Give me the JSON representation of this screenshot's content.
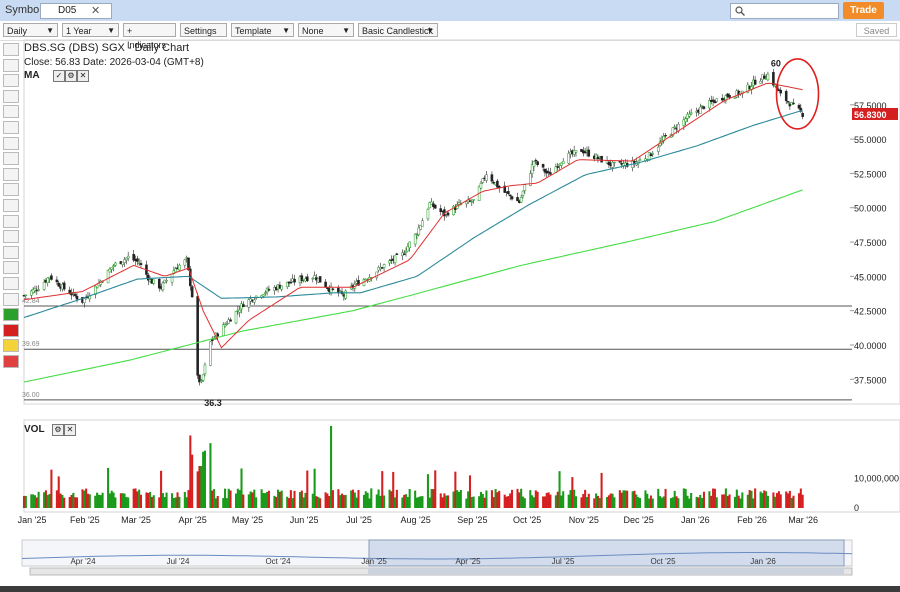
{
  "topbar": {
    "symbols_label": "Symbols:",
    "symbol": "D05",
    "trade_label": "Trade"
  },
  "toolbar": {
    "interval": "Daily",
    "range": "1 Year",
    "indicators": "+ Indicators",
    "settings": "Settings",
    "template": "Template",
    "none": "None",
    "style": "Basic Candlestick",
    "saved": "Saved"
  },
  "chart": {
    "title": "DBS.SG (DBS) SGX - Daily Chart",
    "close_label": "Close: 56.83  Date: 2026-03-04 (GMT+8)",
    "ma_label": "MA",
    "vol_label": "VOL"
  },
  "colors": {
    "up": "#1a9a1a",
    "down": "#d42020",
    "ma_short": "#e03030",
    "ma_mid": "#2b8a9a",
    "ma_long": "#44dd44",
    "price_tag": "#d42020",
    "highlight_circle": "#e02020"
  },
  "chart_data": {
    "type": "candlestick",
    "title": "DBS.SG (DBS) SGX - Daily Chart",
    "last_close": 56.83,
    "last_close_label": "56.8300",
    "price_ticks": [
      "57.5000",
      "55.0000",
      "52.5000",
      "50.0000",
      "47.5000",
      "45.0000",
      "42.5000",
      "40.0000",
      "37.5000"
    ],
    "price_tick_values": [
      57.5,
      55,
      52.5,
      50,
      47.5,
      45,
      42.5,
      40,
      37.5
    ],
    "ylim": [
      35.7,
      61.2
    ],
    "x_ticks": [
      "Jan '25",
      "Feb '25",
      "Mar '25",
      "Apr '25",
      "May '25",
      "Jun '25",
      "Jul '25",
      "Aug '25",
      "Sep '25",
      "Oct '25",
      "Nov '25",
      "Dec '25",
      "Jan '26",
      "Feb '26",
      "Mar '26"
    ],
    "x_range": [
      "2025-01-02",
      "2026-03-31"
    ],
    "horizontal_lines": [
      {
        "label": "42.84",
        "value": 42.84
      },
      {
        "label": "39.69",
        "value": 39.69
      },
      {
        "label": "36.00",
        "value": 36.0
      }
    ],
    "annotations": [
      {
        "text": "60",
        "date": "2026-02-13",
        "value": 60.0
      },
      {
        "text": "36.3",
        "date": "2025-04-09",
        "value": 36.3
      }
    ],
    "price_anchors": [
      [
        "2025-01-02",
        43.6
      ],
      [
        "2025-01-10",
        44.2
      ],
      [
        "2025-01-16",
        45.0
      ],
      [
        "2025-01-24",
        44.1
      ],
      [
        "2025-02-03",
        43.2
      ],
      [
        "2025-02-12",
        44.5
      ],
      [
        "2025-02-20",
        45.8
      ],
      [
        "2025-02-28",
        46.4
      ],
      [
        "2025-03-06",
        46.0
      ],
      [
        "2025-03-12",
        44.7
      ],
      [
        "2025-03-18",
        44.2
      ],
      [
        "2025-03-26",
        45.6
      ],
      [
        "2025-04-01",
        46.2
      ],
      [
        "2025-04-04",
        43.6
      ],
      [
        "2025-04-07",
        37.6
      ],
      [
        "2025-04-09",
        37.2
      ],
      [
        "2025-04-14",
        40.2
      ],
      [
        "2025-04-22",
        41.5
      ],
      [
        "2025-05-02",
        43.0
      ],
      [
        "2025-05-12",
        43.8
      ],
      [
        "2025-05-22",
        44.3
      ],
      [
        "2025-06-02",
        44.8
      ],
      [
        "2025-06-10",
        45.0
      ],
      [
        "2025-06-18",
        44.1
      ],
      [
        "2025-06-26",
        43.6
      ],
      [
        "2025-07-02",
        44.4
      ],
      [
        "2025-07-10",
        45.0
      ],
      [
        "2025-07-18",
        45.8
      ],
      [
        "2025-07-28",
        46.6
      ],
      [
        "2025-08-05",
        48.2
      ],
      [
        "2025-08-12",
        50.3
      ],
      [
        "2025-08-20",
        49.5
      ],
      [
        "2025-08-28",
        50.2
      ],
      [
        "2025-09-05",
        50.5
      ],
      [
        "2025-09-12",
        52.5
      ],
      [
        "2025-09-20",
        51.3
      ],
      [
        "2025-09-30",
        50.4
      ],
      [
        "2025-10-08",
        53.4
      ],
      [
        "2025-10-16",
        52.4
      ],
      [
        "2025-10-24",
        53.6
      ],
      [
        "2025-11-03",
        54.2
      ],
      [
        "2025-11-12",
        53.6
      ],
      [
        "2025-11-20",
        53.1
      ],
      [
        "2025-12-01",
        53.2
      ],
      [
        "2025-12-10",
        53.8
      ],
      [
        "2025-12-20",
        55.3
      ],
      [
        "2025-12-31",
        56.6
      ],
      [
        "2026-01-09",
        57.4
      ],
      [
        "2026-01-20",
        58.1
      ],
      [
        "2026-01-30",
        58.4
      ],
      [
        "2026-02-06",
        59.2
      ],
      [
        "2026-02-13",
        59.7
      ],
      [
        "2026-02-20",
        58.2
      ],
      [
        "2026-02-27",
        57.4
      ],
      [
        "2026-03-04",
        56.83
      ]
    ],
    "ma_short_anchors": [
      [
        "2025-01-02",
        43.3
      ],
      [
        "2025-02-03",
        43.9
      ],
      [
        "2025-03-03",
        45.8
      ],
      [
        "2025-03-20",
        45.0
      ],
      [
        "2025-04-02",
        45.6
      ],
      [
        "2025-04-10",
        42.5
      ],
      [
        "2025-04-20",
        39.8
      ],
      [
        "2025-05-05",
        41.8
      ],
      [
        "2025-06-02",
        44.2
      ],
      [
        "2025-07-01",
        44.2
      ],
      [
        "2025-08-01",
        46.2
      ],
      [
        "2025-08-20",
        49.6
      ],
      [
        "2025-09-10",
        51.2
      ],
      [
        "2025-09-25",
        51.6
      ],
      [
        "2025-10-10",
        51.8
      ],
      [
        "2025-11-01",
        53.5
      ],
      [
        "2025-12-01",
        53.4
      ],
      [
        "2025-12-25",
        55.5
      ],
      [
        "2026-01-20",
        57.8
      ],
      [
        "2026-02-13",
        59.1
      ],
      [
        "2026-03-04",
        58.6
      ]
    ],
    "ma_mid_anchors": [
      [
        "2025-01-02",
        42.0
      ],
      [
        "2025-02-01",
        43.3
      ],
      [
        "2025-03-05",
        44.8
      ],
      [
        "2025-04-02",
        45.0
      ],
      [
        "2025-04-20",
        43.4
      ],
      [
        "2025-05-20",
        43.5
      ],
      [
        "2025-06-20",
        43.8
      ],
      [
        "2025-07-05",
        43.8
      ],
      [
        "2025-08-05",
        45.0
      ],
      [
        "2025-09-05",
        47.8
      ],
      [
        "2025-10-05",
        50.2
      ],
      [
        "2025-11-05",
        52.4
      ],
      [
        "2025-12-05",
        53.3
      ],
      [
        "2026-01-05",
        54.5
      ],
      [
        "2026-02-05",
        56.0
      ],
      [
        "2026-03-04",
        57.1
      ]
    ],
    "ma_long_anchors": [
      [
        "2025-01-02",
        37.3
      ],
      [
        "2025-03-01",
        38.9
      ],
      [
        "2025-05-01",
        41.0
      ],
      [
        "2025-07-01",
        42.5
      ],
      [
        "2025-08-01",
        43.6
      ],
      [
        "2025-10-01",
        45.8
      ],
      [
        "2025-12-01",
        47.6
      ],
      [
        "2026-01-15",
        49.0
      ],
      [
        "2026-03-04",
        51.3
      ]
    ],
    "volume_axis": {
      "ticks": [
        "10,000,000",
        "0"
      ],
      "tick_values": [
        10000000,
        0
      ],
      "max": 30000000
    },
    "navigator_labels": [
      "Apr '24",
      "Jul '24",
      "Oct '24",
      "Jan '25",
      "Apr '25",
      "Jul '25",
      "Oct '25",
      "Jan '26"
    ]
  }
}
